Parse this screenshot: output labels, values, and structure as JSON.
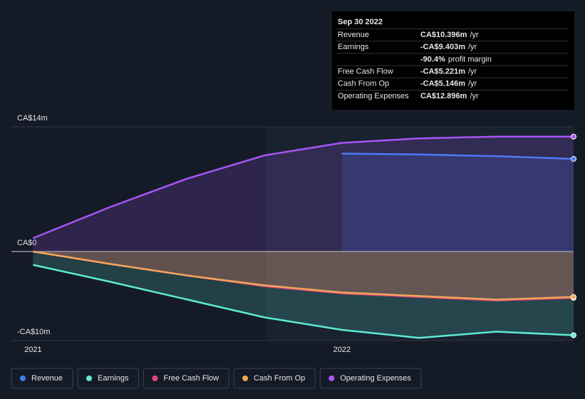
{
  "chart_data": {
    "type": "line",
    "x": [
      2021,
      2021.25,
      2021.5,
      2021.75,
      2022,
      2022.25,
      2022.5,
      2022.75
    ],
    "xlim": [
      2020.93,
      2022.75
    ],
    "xticks": [
      2021,
      2022
    ],
    "ylim": [
      -10,
      14
    ],
    "yticks": [
      {
        "value": 14,
        "label": "CA$14m"
      },
      {
        "value": 0,
        "label": "CA$0"
      },
      {
        "value": -10,
        "label": "-CA$10m"
      }
    ],
    "series": [
      {
        "name": "Revenue",
        "color": "#3b82f6",
        "values": [
          null,
          null,
          null,
          null,
          11.0,
          10.9,
          10.7,
          10.4
        ]
      },
      {
        "name": "Earnings",
        "color": "#5eead4",
        "values": [
          -1.5,
          -3.4,
          -5.4,
          -7.4,
          -8.8,
          -9.7,
          -9.0,
          -9.4
        ]
      },
      {
        "name": "Free Cash Flow",
        "color": "#e0457b",
        "values": [
          0,
          -1.4,
          -2.7,
          -3.9,
          -4.7,
          -5.1,
          -5.5,
          -5.2
        ]
      },
      {
        "name": "Cash From Op",
        "color": "#f2a65a",
        "values": [
          0,
          -1.4,
          -2.7,
          -3.8,
          -4.6,
          -5.0,
          -5.4,
          -5.1
        ]
      },
      {
        "name": "Operating Expenses",
        "color": "#a855f7",
        "values": [
          1.5,
          5.0,
          8.2,
          10.8,
          12.2,
          12.7,
          12.9,
          12.9
        ]
      }
    ],
    "tooltip": {
      "date": "Sep 30 2022",
      "rows": [
        {
          "label": "Revenue",
          "value": "CA$10.396m",
          "unit": "/yr",
          "color": "#3b82f6"
        },
        {
          "label": "Earnings",
          "value": "-CA$9.403m",
          "unit": "/yr",
          "color": "#ef4444"
        },
        {
          "label": null,
          "value": "-90.4%",
          "unit": "profit margin",
          "color": "#ef4444"
        },
        {
          "label": "Free Cash Flow",
          "value": "-CA$5.221m",
          "unit": "/yr",
          "color": "#ef4444"
        },
        {
          "label": "Cash From Op",
          "value": "-CA$5.146m",
          "unit": "/yr",
          "color": "#ef4444"
        },
        {
          "label": "Operating Expenses",
          "value": "CA$12.896m",
          "unit": "/yr",
          "color": "#a855f7"
        }
      ]
    }
  }
}
